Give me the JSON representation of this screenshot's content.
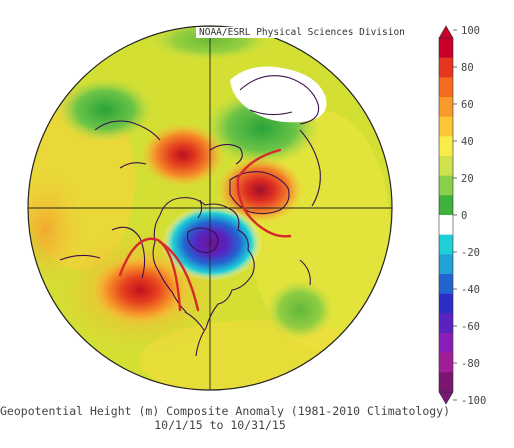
{
  "credit": "NOAA/ESRL Physical Sciences Division",
  "caption_line1": "Geopotential Height (m) Composite Anomaly (1981-2010 Climatology)",
  "caption_line2": "10/1/15 to 10/31/15",
  "colorbar": {
    "ticks": [
      "100",
      "80",
      "60",
      "40",
      "20",
      "0",
      "-20",
      "-40",
      "-60",
      "-80",
      "-100"
    ],
    "colors": [
      "#c8002a",
      "#e6361e",
      "#f26b1e",
      "#f99b2a",
      "#fbc537",
      "#f8ec4a",
      "#cfe24b",
      "#8bd04a",
      "#3fb23b",
      "#ffffff",
      "#1ecfd8",
      "#23a0d6",
      "#2365d0",
      "#2d2fc4",
      "#5a22c0",
      "#8a1fb8",
      "#a21e96",
      "#7a1670"
    ]
  },
  "map": {
    "background_color": "#d4df34",
    "ridge_color": "#f0762a",
    "ridge_core_color": "#d81e1e",
    "trough_color": "#5a22c0",
    "annotation_color": "#d42a2a"
  }
}
